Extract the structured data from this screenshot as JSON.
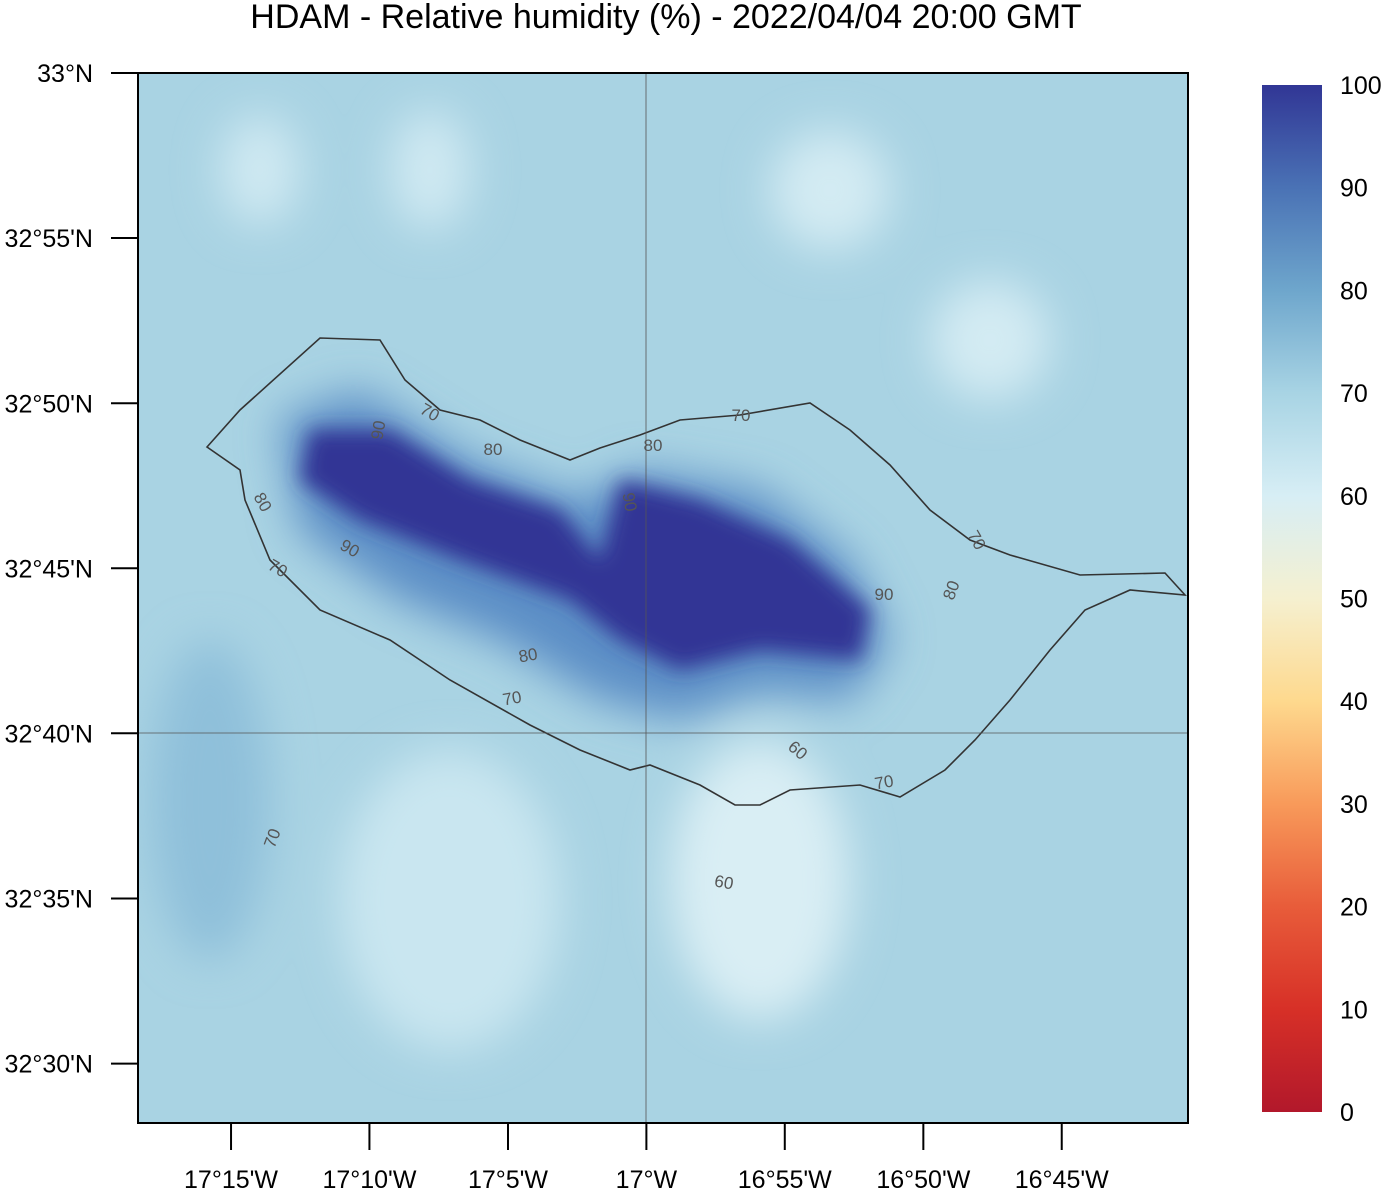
{
  "title": "HDAM - Relative humidity (%)  -  2022/04/04  20:00 GMT",
  "map": {
    "xlim": [
      -17.306,
      -16.674
    ],
    "ylim": [
      32.47,
      33.0
    ],
    "xticks": [
      {
        "value": -17.25,
        "label": "17°15'W"
      },
      {
        "value": -17.1667,
        "label": "17°10'W"
      },
      {
        "value": -17.0833,
        "label": "17°5'W"
      },
      {
        "value": -17,
        "label": "17°W"
      },
      {
        "value": -16.9167,
        "label": "16°55'W"
      },
      {
        "value": -16.8333,
        "label": "16°50'W"
      },
      {
        "value": -16.75,
        "label": "16°45'W"
      }
    ],
    "yticks": [
      {
        "value": 33,
        "label": "33°N"
      },
      {
        "value": 32.9167,
        "label": "32°55'N"
      },
      {
        "value": 32.8333,
        "label": "32°50'N"
      },
      {
        "value": 32.75,
        "label": "32°45'N"
      },
      {
        "value": 32.6667,
        "label": "32°40'N"
      },
      {
        "value": 32.5833,
        "label": "32°35'N"
      },
      {
        "value": 32.5,
        "label": "32°30'N"
      }
    ],
    "contour_labels": [
      70,
      90,
      80,
      80,
      70,
      90,
      80,
      90,
      70,
      80,
      70,
      60,
      70,
      90,
      80,
      70,
      70,
      60
    ]
  },
  "colorbar": {
    "ylim": [
      0,
      100
    ],
    "ticks": [
      0,
      10,
      20,
      30,
      40,
      50,
      60,
      70,
      80,
      90,
      100
    ],
    "colors": [
      "#b2182b",
      "#d73027",
      "#e85c3a",
      "#f89a5a",
      "#fed98e",
      "#f5f0d0",
      "#d7eef5",
      "#a8d4e4",
      "#6ea6cc",
      "#4a72b5",
      "#313695"
    ]
  }
}
